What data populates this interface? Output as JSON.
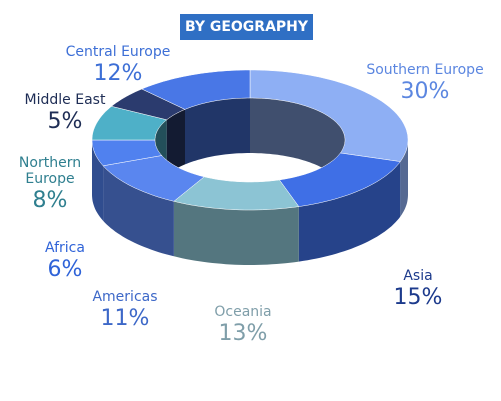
{
  "chart_data": {
    "type": "donut3d",
    "title": "BY GEOGRAPHY",
    "categories": [
      "Southern Europe",
      "Asia",
      "Oceania",
      "Americas",
      "Africa",
      "Northern Europe",
      "Middle East",
      "Central Europe"
    ],
    "values": [
      30,
      15,
      13,
      11,
      6,
      8,
      5,
      12
    ],
    "value_labels": [
      "30%",
      "15%",
      "13%",
      "11%",
      "6%",
      "8%",
      "5%",
      "12%"
    ],
    "colors": [
      "#8eaff4",
      "#3f6fe6",
      "#8cc4d4",
      "#5a86ef",
      "#5081ef",
      "#4eb0c8",
      "#2b3b6e",
      "#4977e6"
    ]
  }
}
